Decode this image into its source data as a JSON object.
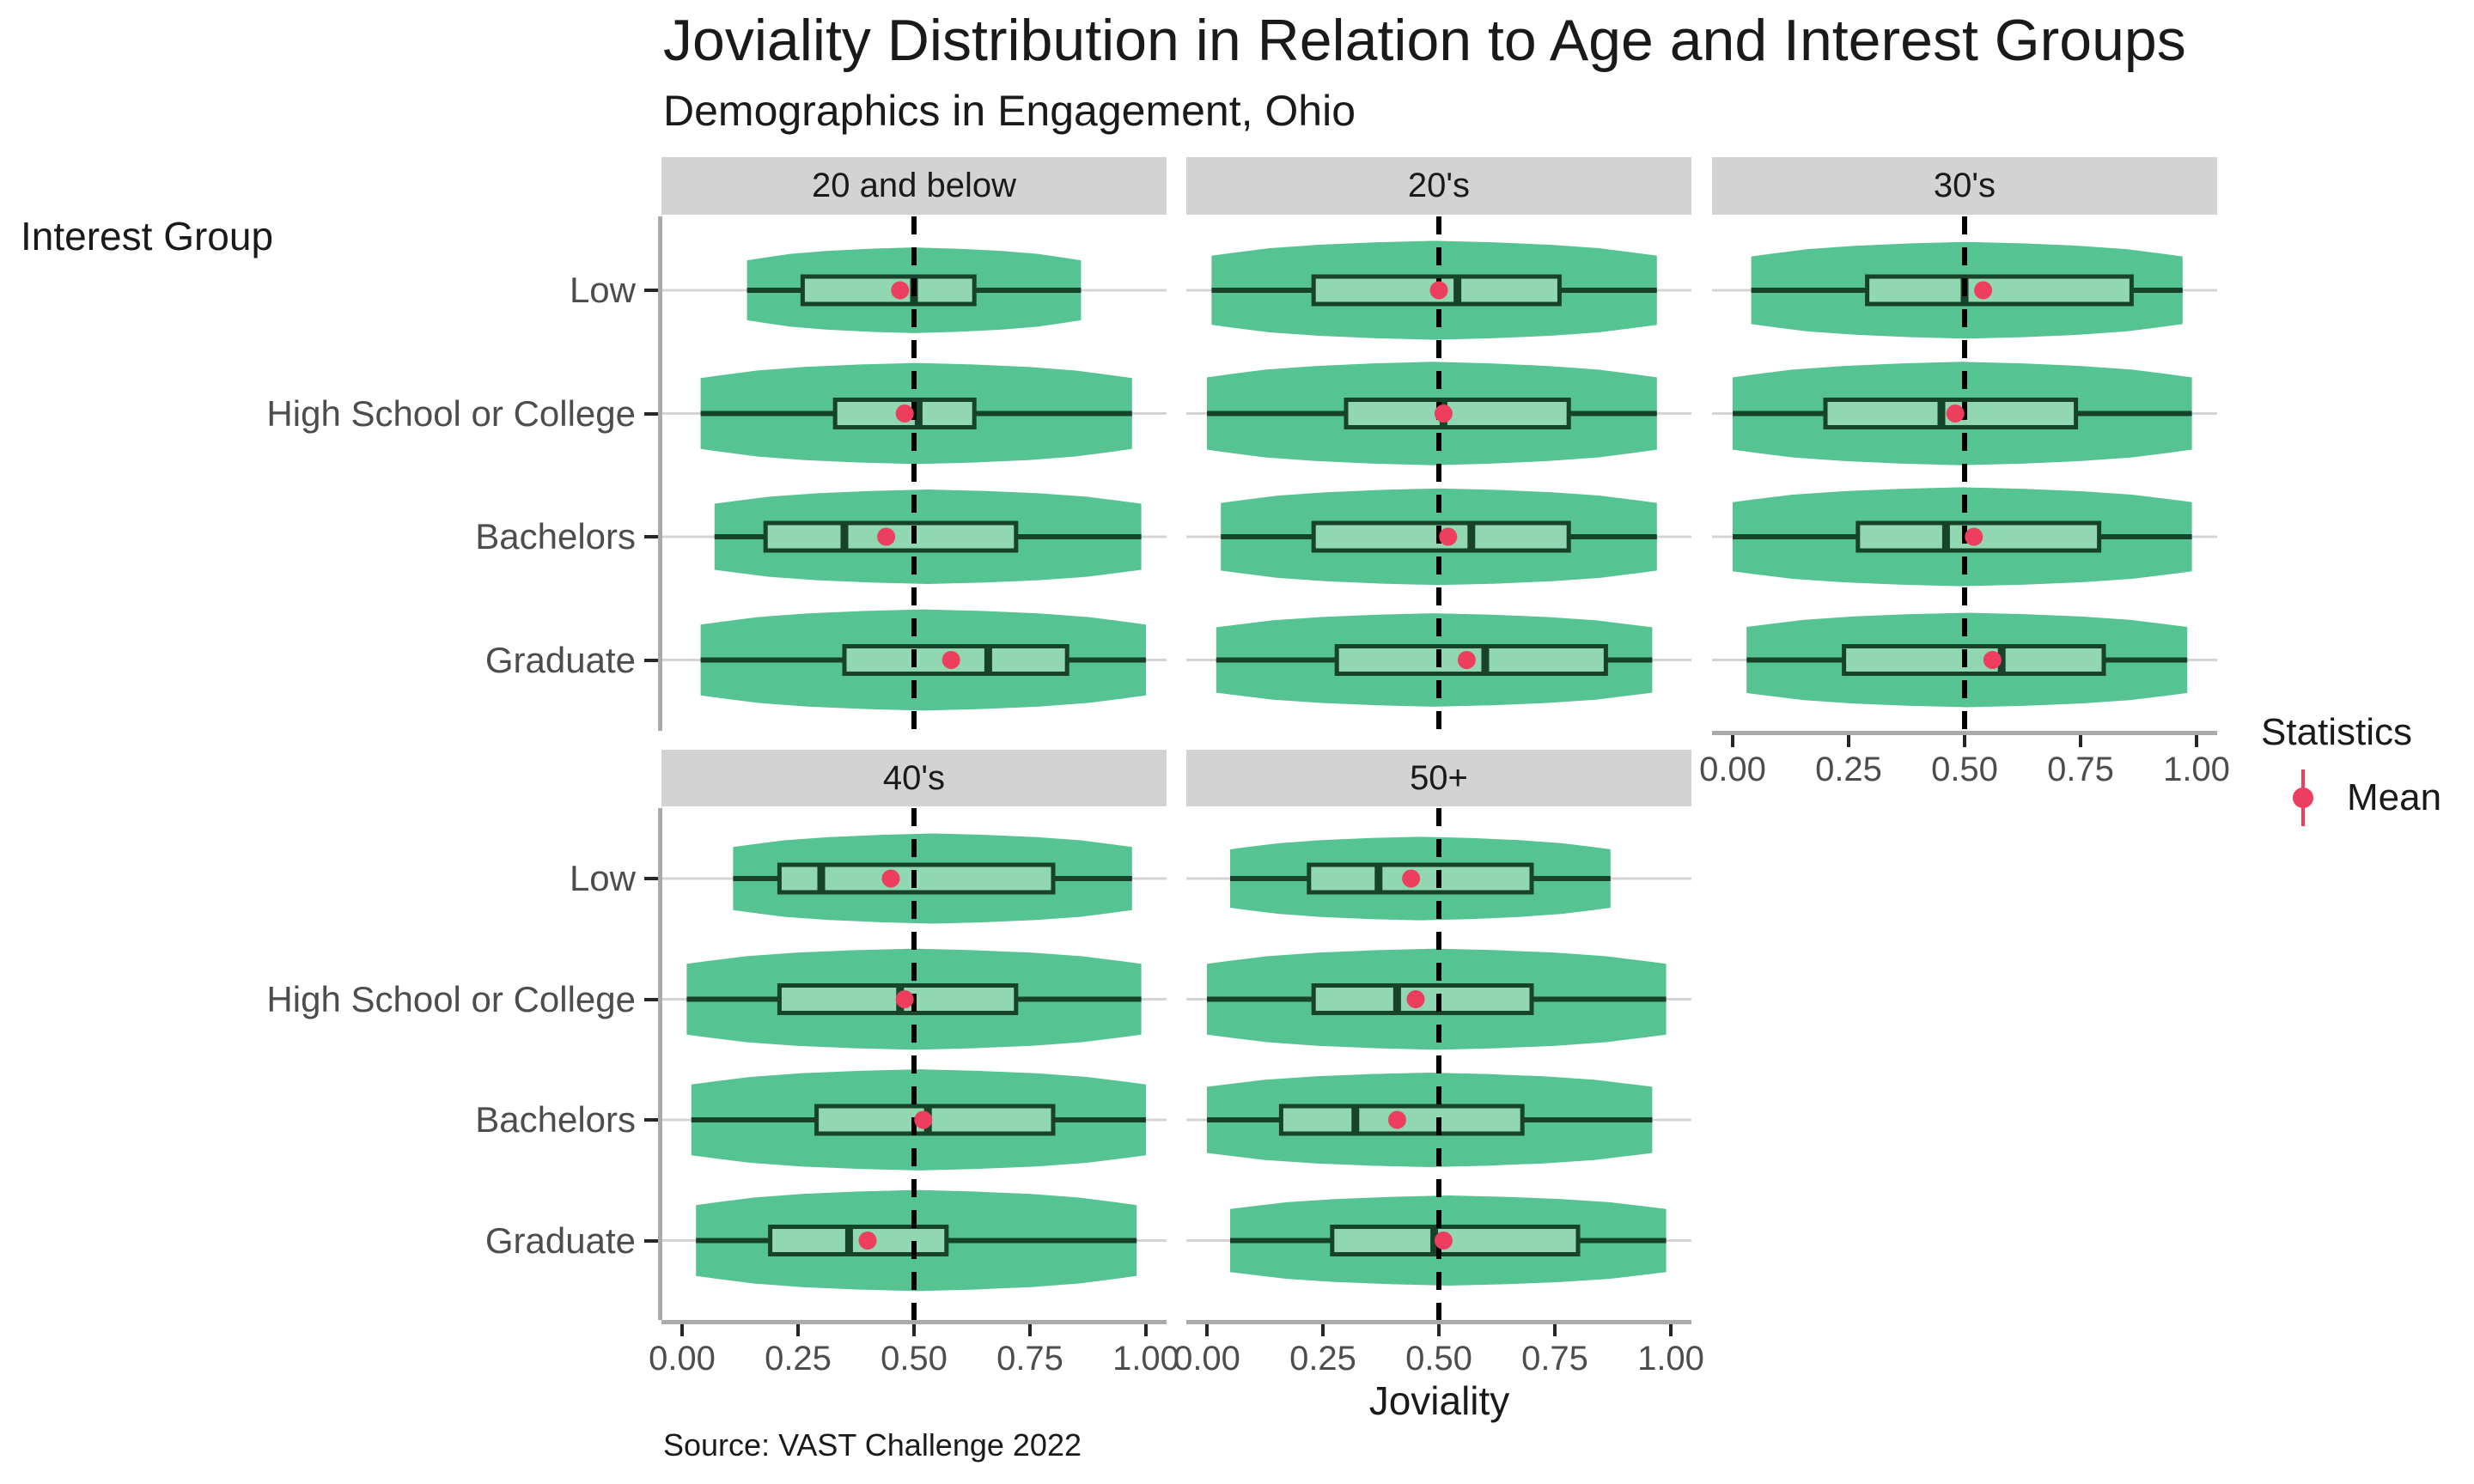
{
  "chart_data": {
    "type": "violin+boxplot",
    "title": "Joviality Distribution in Relation to Age and Interest Groups",
    "subtitle": "Demographics in Engagement, Ohio",
    "caption": "Source: VAST Challenge 2022",
    "x_label": "Joviality",
    "y_label": "Interest Group",
    "x_ticks": [
      {
        "label": "0.00",
        "value": 0.0
      },
      {
        "label": "0.25",
        "value": 0.25
      },
      {
        "label": "0.50",
        "value": 0.5
      },
      {
        "label": "0.75",
        "value": 0.75
      },
      {
        "label": "1.00",
        "value": 1.0
      }
    ],
    "x_range": [
      0,
      1
    ],
    "reference_line": 0.5,
    "grid": "horizontal-only",
    "categories": [
      "Low",
      "High School or College",
      "Bachelors",
      "Graduate"
    ],
    "legend": {
      "title": "Statistics",
      "position": "right",
      "items": [
        {
          "label": "Mean",
          "glyph": "pointrange"
        }
      ]
    },
    "facets": [
      {
        "label": "20 and below",
        "stats": [
          {
            "group": "Low",
            "min": 0.14,
            "q1": 0.26,
            "median": 0.5,
            "q3": 0.63,
            "max": 0.86,
            "mean": 0.47,
            "width": 0.78
          },
          {
            "group": "High School or College",
            "min": 0.04,
            "q1": 0.33,
            "median": 0.51,
            "q3": 0.63,
            "max": 0.97,
            "mean": 0.48,
            "width": 0.92
          },
          {
            "group": "Bachelors",
            "min": 0.07,
            "q1": 0.18,
            "median": 0.35,
            "q3": 0.72,
            "max": 0.99,
            "mean": 0.44,
            "width": 0.86
          },
          {
            "group": "Graduate",
            "min": 0.04,
            "q1": 0.35,
            "median": 0.66,
            "q3": 0.83,
            "max": 1.0,
            "mean": 0.58,
            "width": 0.92
          }
        ]
      },
      {
        "label": "20's",
        "stats": [
          {
            "group": "Low",
            "min": 0.01,
            "q1": 0.23,
            "median": 0.54,
            "q3": 0.76,
            "max": 0.97,
            "mean": 0.5,
            "width": 0.9
          },
          {
            "group": "High School or College",
            "min": 0.0,
            "q1": 0.3,
            "median": 0.51,
            "q3": 0.78,
            "max": 0.97,
            "mean": 0.51,
            "width": 0.94
          },
          {
            "group": "Bachelors",
            "min": 0.03,
            "q1": 0.23,
            "median": 0.57,
            "q3": 0.78,
            "max": 0.97,
            "mean": 0.52,
            "width": 0.88
          },
          {
            "group": "Graduate",
            "min": 0.02,
            "q1": 0.28,
            "median": 0.6,
            "q3": 0.86,
            "max": 0.96,
            "mean": 0.56,
            "width": 0.85
          }
        ]
      },
      {
        "label": "30's",
        "stats": [
          {
            "group": "Low",
            "min": 0.04,
            "q1": 0.29,
            "median": 0.5,
            "q3": 0.86,
            "max": 0.97,
            "mean": 0.54,
            "width": 0.88
          },
          {
            "group": "High School or College",
            "min": 0.0,
            "q1": 0.2,
            "median": 0.45,
            "q3": 0.74,
            "max": 0.99,
            "mean": 0.48,
            "width": 0.94
          },
          {
            "group": "Bachelors",
            "min": 0.0,
            "q1": 0.27,
            "median": 0.46,
            "q3": 0.79,
            "max": 0.99,
            "mean": 0.52,
            "width": 0.9
          },
          {
            "group": "Graduate",
            "min": 0.03,
            "q1": 0.24,
            "median": 0.58,
            "q3": 0.8,
            "max": 0.98,
            "mean": 0.56,
            "width": 0.86
          }
        ]
      },
      {
        "label": "40's",
        "stats": [
          {
            "group": "Low",
            "min": 0.11,
            "q1": 0.21,
            "median": 0.3,
            "q3": 0.8,
            "max": 0.97,
            "mean": 0.45,
            "width": 0.82
          },
          {
            "group": "High School or College",
            "min": 0.01,
            "q1": 0.21,
            "median": 0.47,
            "q3": 0.72,
            "max": 0.99,
            "mean": 0.48,
            "width": 0.92
          },
          {
            "group": "Bachelors",
            "min": 0.02,
            "q1": 0.29,
            "median": 0.53,
            "q3": 0.8,
            "max": 1.0,
            "mean": 0.52,
            "width": 0.92
          },
          {
            "group": "Graduate",
            "min": 0.03,
            "q1": 0.19,
            "median": 0.36,
            "q3": 0.57,
            "max": 0.98,
            "mean": 0.4,
            "width": 0.92
          }
        ]
      },
      {
        "label": "50+",
        "stats": [
          {
            "group": "Low",
            "min": 0.05,
            "q1": 0.22,
            "median": 0.37,
            "q3": 0.7,
            "max": 0.87,
            "mean": 0.44,
            "width": 0.76
          },
          {
            "group": "High School or College",
            "min": 0.0,
            "q1": 0.23,
            "median": 0.41,
            "q3": 0.7,
            "max": 0.99,
            "mean": 0.45,
            "width": 0.92
          },
          {
            "group": "Bachelors",
            "min": 0.0,
            "q1": 0.16,
            "median": 0.32,
            "q3": 0.68,
            "max": 0.96,
            "mean": 0.41,
            "width": 0.86
          },
          {
            "group": "Graduate",
            "min": 0.05,
            "q1": 0.27,
            "median": 0.49,
            "q3": 0.8,
            "max": 0.99,
            "mean": 0.51,
            "width": 0.82
          }
        ]
      }
    ],
    "colors": {
      "violin_fill": "#56c392",
      "box_fill": "#90d7b2",
      "stroke_dark": "#17432b",
      "mean": "#ed3e5d",
      "grid": "#d4d4d4",
      "axis_line": "#aaaaaa",
      "tick": "#262626",
      "tick_label": "#4d4d4d",
      "strip_bg": "#d3d3d3",
      "reference_line": "#000000"
    }
  }
}
